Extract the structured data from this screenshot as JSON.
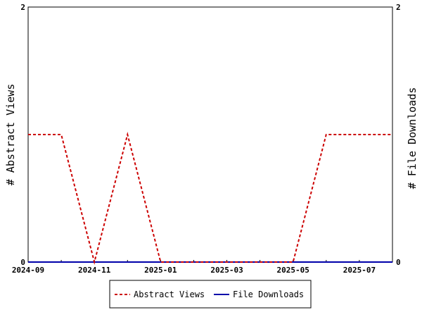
{
  "chart_data": {
    "type": "line",
    "title": "",
    "x": [
      "2024-09",
      "2024-10",
      "2024-11",
      "2024-12",
      "2025-01",
      "2025-02",
      "2025-03",
      "2025-04",
      "2025-05",
      "2025-06",
      "2025-07",
      "2025-08"
    ],
    "x_tick_labels": [
      "2024-09",
      "2024-11",
      "2025-01",
      "2025-03",
      "2025-05",
      "2025-07"
    ],
    "ylabel_left": "# Abstract Views",
    "ylabel_right": "# File Downloads",
    "ylim_left": [
      0,
      2
    ],
    "ylim_right": [
      0,
      2
    ],
    "y_ticks_left": [
      "0",
      "2"
    ],
    "y_ticks_right": [
      "0",
      "2"
    ],
    "grid": false,
    "legend_position": "bottom",
    "series": [
      {
        "name": "Abstract Views",
        "axis": "left",
        "color": "#cc0000",
        "style": "dashed",
        "values": [
          1,
          1,
          0,
          1,
          0,
          0,
          0,
          0,
          0,
          1,
          1,
          1
        ]
      },
      {
        "name": "File Downloads",
        "axis": "right",
        "color": "#0000aa",
        "style": "solid",
        "values": [
          0,
          0,
          0,
          0,
          0,
          0,
          0,
          0,
          0,
          0,
          0,
          0
        ]
      }
    ]
  }
}
